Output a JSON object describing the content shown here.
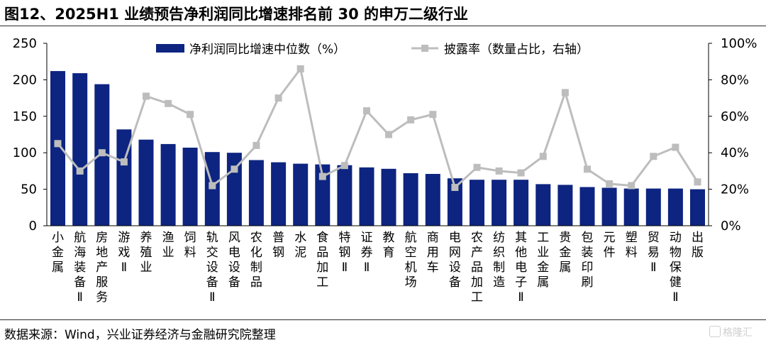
{
  "header": {
    "title": "图12、2025H1 业绩预告净利润同比增速排名前 30 的申万二级行业"
  },
  "footer": {
    "source": "数据来源：Wind，兴业证券经济与金融研究院整理",
    "watermark": "格隆汇"
  },
  "chart_data": {
    "type": "bar",
    "categories": [
      "小金属",
      "航海装备Ⅱ",
      "房地产服务",
      "游戏Ⅱ",
      "养殖业",
      "渔业",
      "饲料",
      "轨交设备Ⅱ",
      "风电设备",
      "农化制品",
      "普钢",
      "水泥",
      "食品加工",
      "特钢Ⅱ",
      "证券Ⅱ",
      "教育",
      "航空机场",
      "商用车",
      "电网设备",
      "农产品加工",
      "纺织制造",
      "其他电子Ⅱ",
      "工业金属",
      "贵金属",
      "包装印刷",
      "元件",
      "塑料",
      "贸易Ⅱ",
      "动物保健Ⅱ",
      "出版"
    ],
    "series": [
      {
        "name": "净利润同比增速中位数（%）",
        "type": "bar",
        "axis": "left",
        "color": "#0d2481",
        "values": [
          212,
          209,
          194,
          132,
          118,
          112,
          107,
          101,
          100,
          90,
          87,
          85,
          84,
          83,
          80,
          78,
          72,
          71,
          65,
          63,
          63,
          63,
          57,
          56,
          53,
          52,
          51,
          51,
          51,
          50
        ]
      },
      {
        "name": "披露率（数量占比，右轴）",
        "type": "line",
        "axis": "right",
        "color": "#bdbdbd",
        "values": [
          45,
          30,
          40,
          35,
          71,
          67,
          61,
          22,
          31,
          44,
          70,
          86,
          27,
          33,
          63,
          50,
          58,
          61,
          21,
          32,
          30,
          29,
          38,
          73,
          31,
          23,
          22,
          38,
          43,
          24
        ]
      }
    ],
    "left_axis": {
      "ylim": [
        0,
        250
      ],
      "ticks": [
        "0",
        "50",
        "100",
        "150",
        "200",
        "250"
      ]
    },
    "right_axis": {
      "ylim": [
        0,
        100
      ],
      "ticks": [
        "0%",
        "20%",
        "40%",
        "60%",
        "80%",
        "100%"
      ]
    },
    "legend_placement": "top-center",
    "grid": false
  }
}
